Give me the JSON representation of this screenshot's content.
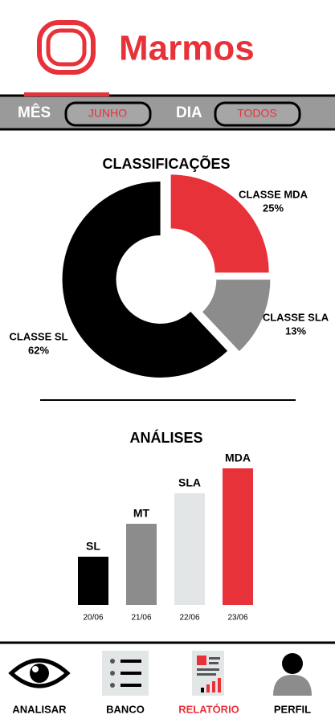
{
  "header": {
    "title": "Marmos"
  },
  "filters": {
    "month_label": "MÊS",
    "month_value": "JUNHO",
    "day_label": "DIA",
    "day_value": "TODOS"
  },
  "chart_data": [
    {
      "type": "donut",
      "title": "CLASSIFICAÇÕES",
      "categories": [
        "CLASSE MDA",
        "CLASSE SLA",
        "CLASSE SL"
      ],
      "values": [
        25,
        13,
        62
      ],
      "value_labels": [
        "25%",
        "13%",
        "62%"
      ],
      "colors": [
        "#e8323a",
        "#8c8c8c",
        "#000000"
      ]
    },
    {
      "type": "bar",
      "title": "ANÁLISES",
      "categories": [
        "20/06",
        "21/06",
        "22/06",
        "23/06"
      ],
      "bar_labels": [
        "SL",
        "MT",
        "SLA",
        "MDA"
      ],
      "values": [
        60,
        101,
        139,
        170
      ],
      "colors": [
        "#000000",
        "#8c8c8c",
        "#e3e6e6",
        "#e8323a"
      ]
    }
  ],
  "nav": {
    "items": [
      "ANALISAR",
      "BANCO",
      "RELATÓRIO",
      "PERFIL"
    ],
    "active": 2
  }
}
